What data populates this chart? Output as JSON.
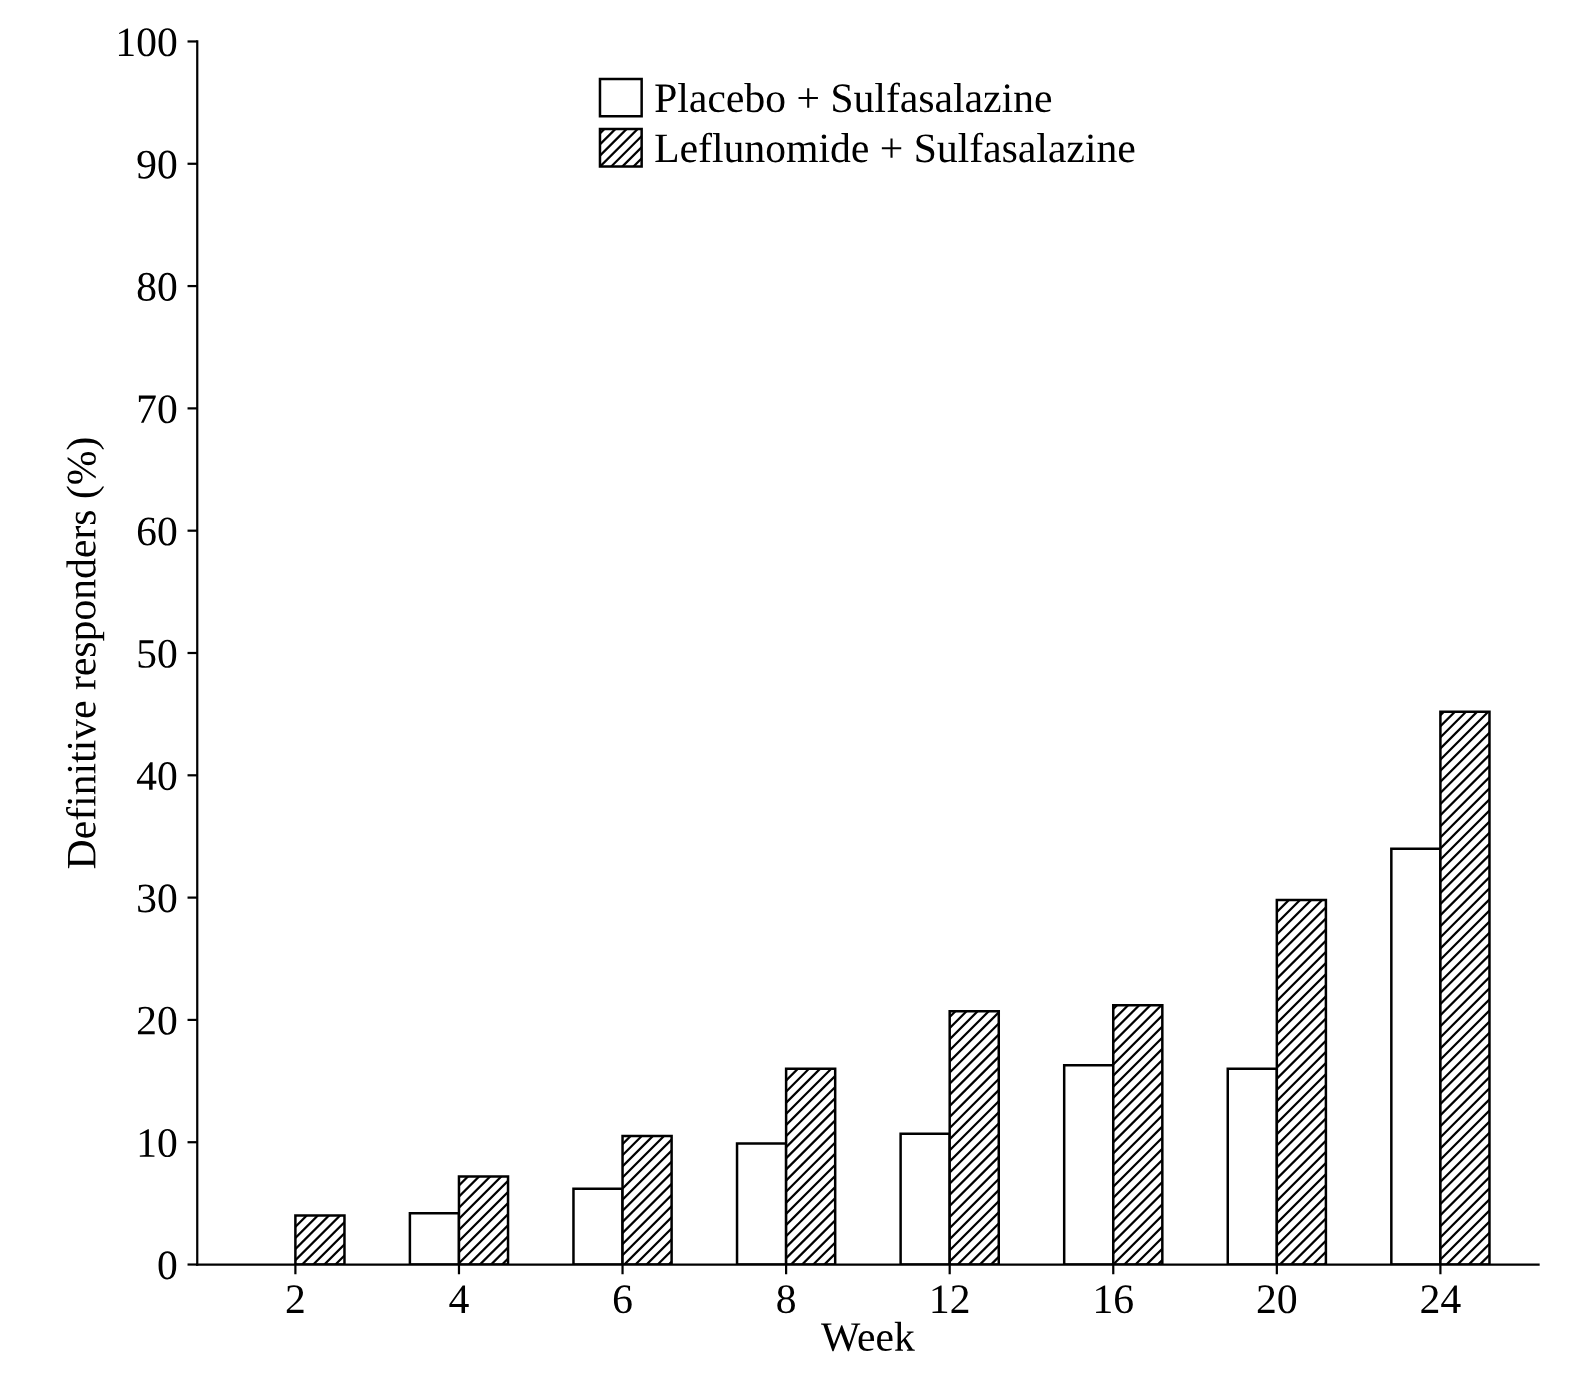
{
  "chart_data": {
    "type": "bar",
    "xlabel": "Week",
    "ylabel": "Definitive responders (%)",
    "categories": [
      "2",
      "4",
      "6",
      "8",
      "12",
      "16",
      "20",
      "24"
    ],
    "series": [
      {
        "name": "Placebo + Sulfasalazine",
        "color": "#ffffff",
        "values": [
          null,
          4.2,
          6.2,
          9.9,
          10.7,
          16.3,
          16,
          34
        ]
      },
      {
        "name": "Leflunomide + Sulfasalazine",
        "color": "#000000",
        "values": [
          4,
          7.2,
          10.5,
          16,
          20.7,
          21.2,
          29.8,
          45.2
        ]
      }
    ],
    "ylim": [
      0,
      100
    ],
    "yticks": [
      0,
      10,
      20,
      30,
      40,
      50,
      60,
      70,
      80,
      90,
      100
    ],
    "grid": false,
    "legend": "top"
  }
}
